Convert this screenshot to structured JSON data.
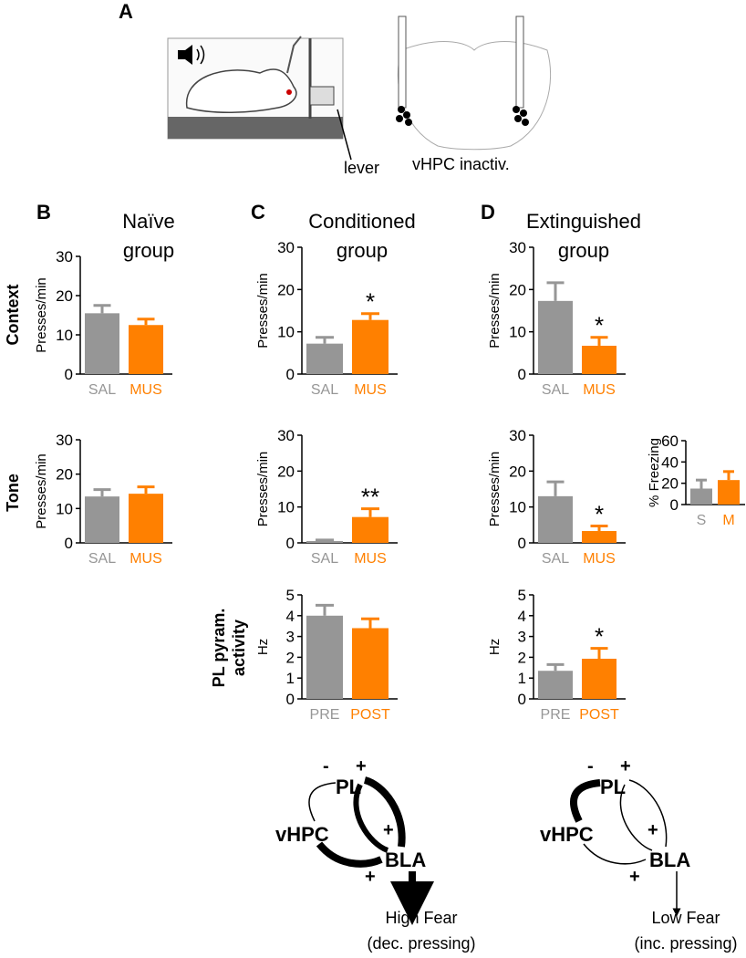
{
  "chart_data": [
    {
      "type": "bar",
      "ylabel": "Presses/min",
      "categories": [
        "SAL",
        "MUS"
      ],
      "values": [
        15.5,
        12.5
      ],
      "errors": [
        2,
        1.5
      ],
      "colors": [
        "#969696",
        "#ff8000"
      ],
      "ylim": [
        0,
        30
      ],
      "yticks": [
        0,
        10,
        20,
        30
      ]
    },
    {
      "type": "bar",
      "ylabel": "Presses/min",
      "categories": [
        "SAL",
        "MUS"
      ],
      "values": [
        13.5,
        14.3
      ],
      "errors": [
        2,
        2
      ],
      "colors": [
        "#969696",
        "#ff8000"
      ],
      "ylim": [
        0,
        30
      ],
      "yticks": [
        0,
        10,
        20,
        30
      ]
    },
    {
      "type": "bar",
      "ylabel": "Presses/min",
      "categories": [
        "SAL",
        "MUS"
      ],
      "values": [
        7.2,
        12.8
      ],
      "errors": [
        1.5,
        1.5
      ],
      "colors": [
        "#969696",
        "#ff8000"
      ],
      "ylim": [
        0,
        30
      ],
      "yticks": [
        0,
        10,
        20,
        30
      ],
      "significance": "*"
    },
    {
      "type": "bar",
      "ylabel": "Presses/min",
      "categories": [
        "SAL",
        "MUS"
      ],
      "values": [
        0.5,
        7.2
      ],
      "errors": [
        0.3,
        2.3
      ],
      "colors": [
        "#969696",
        "#ff8000"
      ],
      "ylim": [
        0,
        30
      ],
      "yticks": [
        0,
        10,
        20,
        30
      ],
      "significance": "**"
    },
    {
      "type": "bar",
      "ylabel": "Hz",
      "categories": [
        "PRE",
        "POST"
      ],
      "values": [
        4.0,
        3.4
      ],
      "errors": [
        0.5,
        0.45
      ],
      "colors": [
        "#969696",
        "#ff8000"
      ],
      "ylim": [
        0,
        5
      ],
      "yticks": [
        0,
        1,
        2,
        3,
        4,
        5
      ]
    },
    {
      "type": "bar",
      "ylabel": "Presses/min",
      "categories": [
        "SAL",
        "MUS"
      ],
      "values": [
        17.3,
        6.7
      ],
      "errors": [
        4.3,
        2
      ],
      "colors": [
        "#969696",
        "#ff8000"
      ],
      "ylim": [
        0,
        30
      ],
      "yticks": [
        0,
        10,
        20,
        30
      ],
      "significance": "*"
    },
    {
      "type": "bar",
      "ylabel": "Presses/min",
      "categories": [
        "SAL",
        "MUS"
      ],
      "values": [
        13,
        3.3
      ],
      "errors": [
        4,
        1.4
      ],
      "colors": [
        "#969696",
        "#ff8000"
      ],
      "ylim": [
        0,
        30
      ],
      "yticks": [
        0,
        10,
        20,
        30
      ],
      "significance": "*"
    },
    {
      "type": "bar",
      "ylabel": "Hz",
      "categories": [
        "PRE",
        "POST"
      ],
      "values": [
        1.35,
        1.93
      ],
      "errors": [
        0.3,
        0.5
      ],
      "colors": [
        "#969696",
        "#ff8000"
      ],
      "ylim": [
        0,
        5
      ],
      "yticks": [
        0,
        1,
        2,
        3,
        4,
        5
      ],
      "significance": "*"
    },
    {
      "type": "bar",
      "ylabel": "% Freezing",
      "categories": [
        "S",
        "M"
      ],
      "values": [
        15,
        23
      ],
      "errors": [
        8,
        8
      ],
      "colors": [
        "#969696",
        "#ff8000"
      ],
      "ylim": [
        0,
        60
      ],
      "yticks": [
        0,
        20,
        40,
        60
      ]
    }
  ],
  "panel_a": {
    "letter": "A",
    "labels": [
      "lever",
      "vHPC inactiv."
    ]
  },
  "columns": [
    {
      "letter": "B",
      "title": [
        "Naïve",
        "group"
      ]
    },
    {
      "letter": "C",
      "title": [
        "Conditioned",
        "group"
      ]
    },
    {
      "letter": "D",
      "title": [
        "Extinguished",
        "group"
      ]
    }
  ],
  "rows": [
    "Context",
    "Tone",
    [
      "PL pyram.",
      "activity"
    ]
  ],
  "diagrams": [
    {
      "nodes": [
        "PL",
        "vHPC",
        "BLA"
      ],
      "signs": [
        "-",
        "+",
        "+",
        "+"
      ],
      "outcome": [
        "High Fear",
        "(dec. pressing)"
      ]
    },
    {
      "nodes": [
        "PL",
        "vHPC",
        "BLA"
      ],
      "signs": [
        "-",
        "+",
        "+",
        "+"
      ],
      "outcome": [
        "Low Fear",
        "(inc. pressing)"
      ]
    }
  ]
}
